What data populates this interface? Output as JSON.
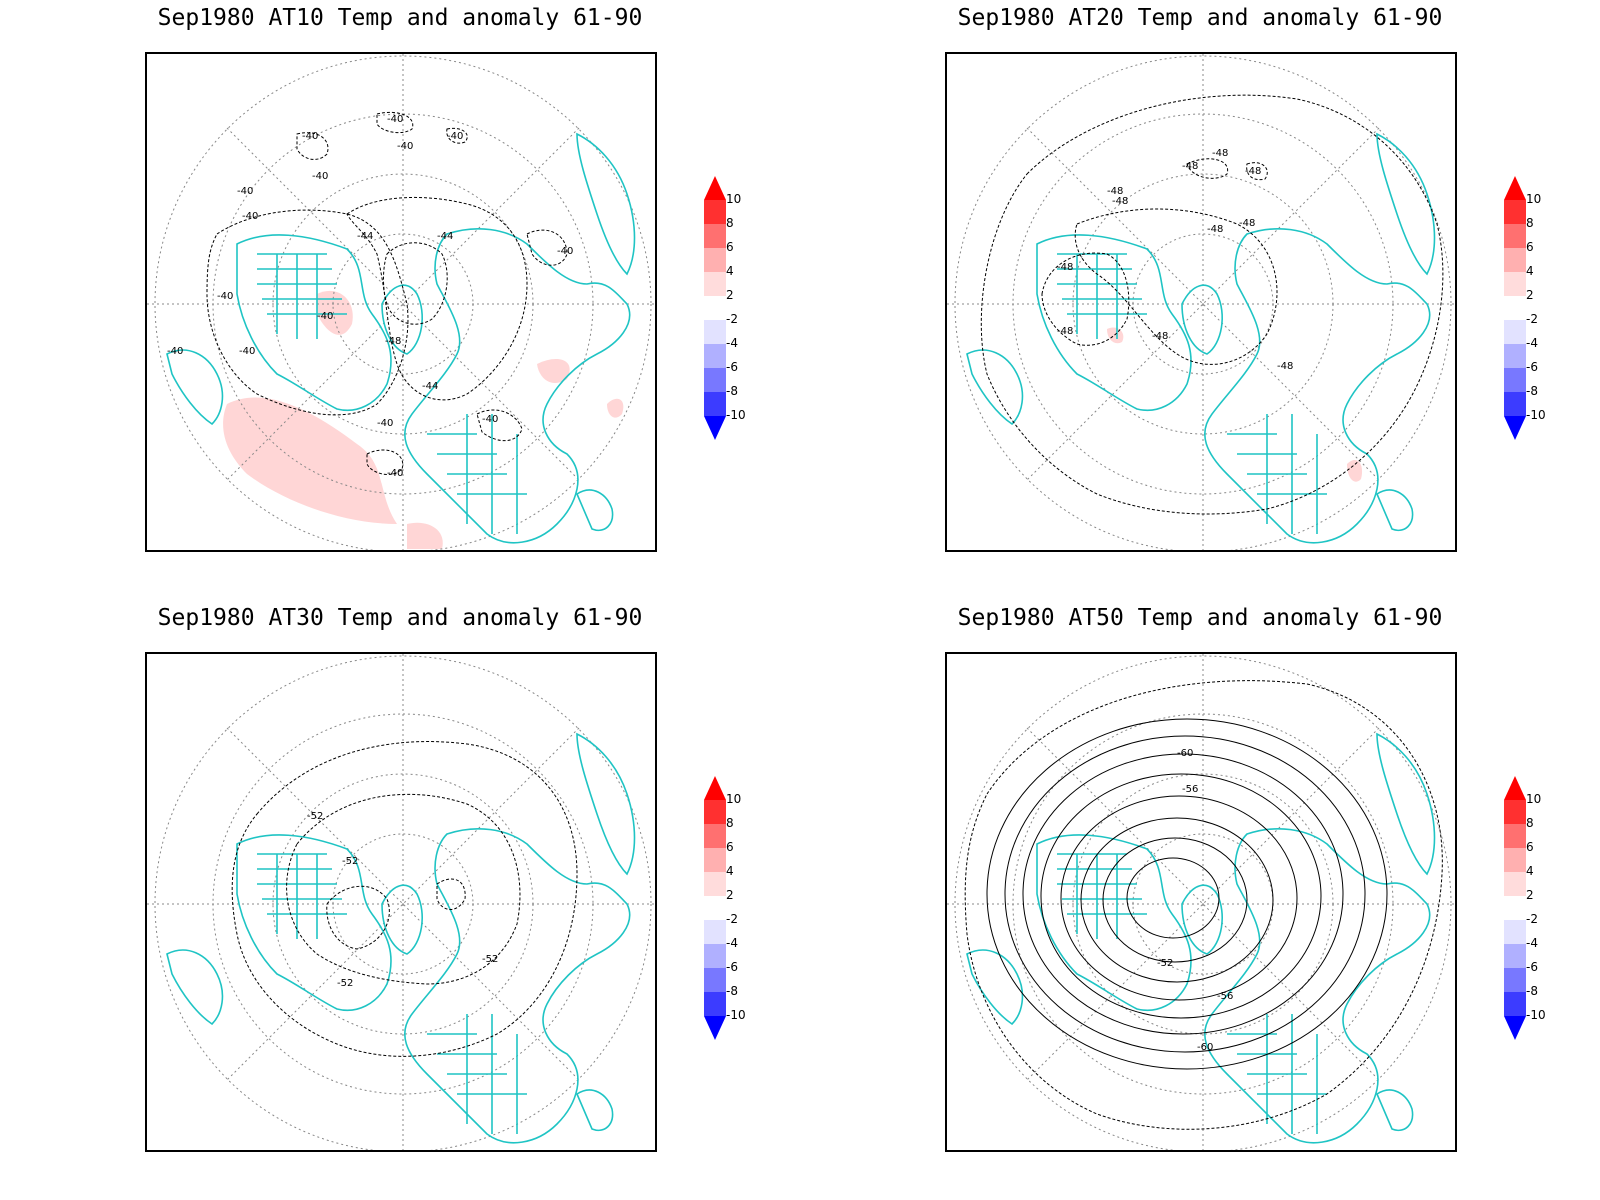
{
  "colorbar": {
    "labels": [
      "10",
      "8",
      "6",
      "4",
      "2",
      "-2",
      "-4",
      "-6",
      "-8",
      "-10"
    ],
    "colors": [
      "#ff0000",
      "#ff5050",
      "#ff9090",
      "#ffcaca",
      "#ffecec",
      "#ffffff",
      "#e6e6ff",
      "#b4b4ff",
      "#8282ff",
      "#4646ff",
      "#0000ff"
    ]
  },
  "panels": [
    {
      "title": "Sep1980 AT10 Temp and anomaly 61-90",
      "contour_labels": [
        "-40",
        "-40",
        "-40",
        "-40",
        "-40",
        "-40",
        "-40",
        "-40",
        "-40",
        "-40",
        "-40",
        "-40",
        "-44",
        "-44",
        "-44",
        "-48",
        "-40",
        "-40",
        "-40"
      ]
    },
    {
      "title": "Sep1980 AT20 Temp and anomaly 61-90",
      "contour_labels": [
        "-48",
        "-48",
        "-48",
        "-48",
        "-48",
        "-48",
        "-48",
        "-48",
        "-48",
        "-48",
        "-48"
      ]
    },
    {
      "title": "Sep1980 AT30 Temp and anomaly 61-90",
      "contour_labels": [
        "-52",
        "-52",
        "-52",
        "-52"
      ]
    },
    {
      "title": "Sep1980 AT50 Temp and anomaly 61-90",
      "contour_labels": [
        "-60",
        "-56",
        "-52",
        "-56",
        "-60"
      ]
    }
  ]
}
